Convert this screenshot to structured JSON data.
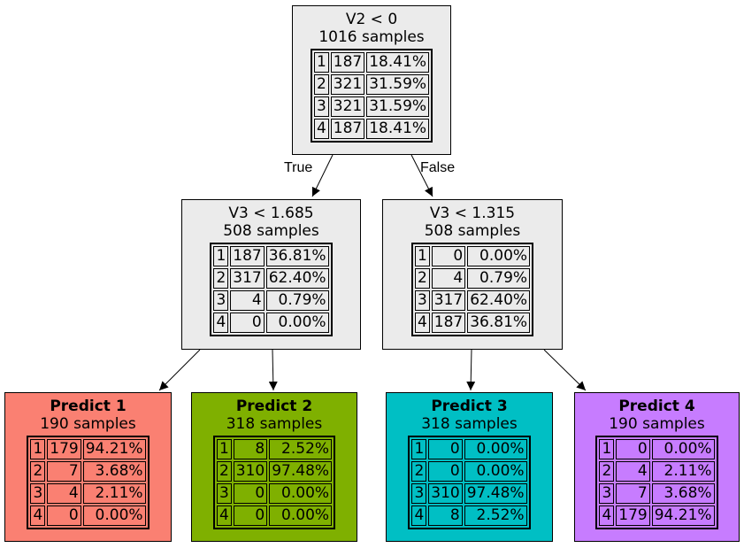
{
  "edges": {
    "true_label": "True",
    "false_label": "False"
  },
  "nodes": [
    {
      "id": "root",
      "title": "V2 < 0",
      "samples": "1016 samples",
      "fill": "#ebebeb",
      "leaf": false,
      "rows": [
        [
          "1",
          "187",
          "18.41%"
        ],
        [
          "2",
          "321",
          "31.59%"
        ],
        [
          "3",
          "321",
          "31.59%"
        ],
        [
          "4",
          "187",
          "18.41%"
        ]
      ]
    },
    {
      "id": "left",
      "title": "V3 < 1.685",
      "samples": "508 samples",
      "fill": "#ebebeb",
      "leaf": false,
      "rows": [
        [
          "1",
          "187",
          "36.81%"
        ],
        [
          "2",
          "317",
          "62.40%"
        ],
        [
          "3",
          "4",
          "0.79%"
        ],
        [
          "4",
          "0",
          "0.00%"
        ]
      ]
    },
    {
      "id": "right",
      "title": "V3 < 1.315",
      "samples": "508 samples",
      "fill": "#ebebeb",
      "leaf": false,
      "rows": [
        [
          "1",
          "0",
          "0.00%"
        ],
        [
          "2",
          "4",
          "0.79%"
        ],
        [
          "3",
          "317",
          "62.40%"
        ],
        [
          "4",
          "187",
          "36.81%"
        ]
      ]
    },
    {
      "id": "leaf1",
      "title": "Predict 1",
      "samples": "190 samples",
      "fill": "#fa8072",
      "leaf": true,
      "rows": [
        [
          "1",
          "179",
          "94.21%"
        ],
        [
          "2",
          "7",
          "3.68%"
        ],
        [
          "3",
          "4",
          "2.11%"
        ],
        [
          "4",
          "0",
          "0.00%"
        ]
      ]
    },
    {
      "id": "leaf2",
      "title": "Predict 2",
      "samples": "318 samples",
      "fill": "#7fb000",
      "leaf": true,
      "rows": [
        [
          "1",
          "8",
          "2.52%"
        ],
        [
          "2",
          "310",
          "97.48%"
        ],
        [
          "3",
          "0",
          "0.00%"
        ],
        [
          "4",
          "0",
          "0.00%"
        ]
      ]
    },
    {
      "id": "leaf3",
      "title": "Predict 3",
      "samples": "318 samples",
      "fill": "#00bfc4",
      "leaf": true,
      "rows": [
        [
          "1",
          "0",
          "0.00%"
        ],
        [
          "2",
          "0",
          "0.00%"
        ],
        [
          "3",
          "310",
          "97.48%"
        ],
        [
          "4",
          "8",
          "2.52%"
        ]
      ]
    },
    {
      "id": "leaf4",
      "title": "Predict 4",
      "samples": "190 samples",
      "fill": "#c77cff",
      "leaf": true,
      "rows": [
        [
          "1",
          "0",
          "0.00%"
        ],
        [
          "2",
          "4",
          "2.11%"
        ],
        [
          "3",
          "7",
          "3.68%"
        ],
        [
          "4",
          "179",
          "94.21%"
        ]
      ]
    }
  ]
}
